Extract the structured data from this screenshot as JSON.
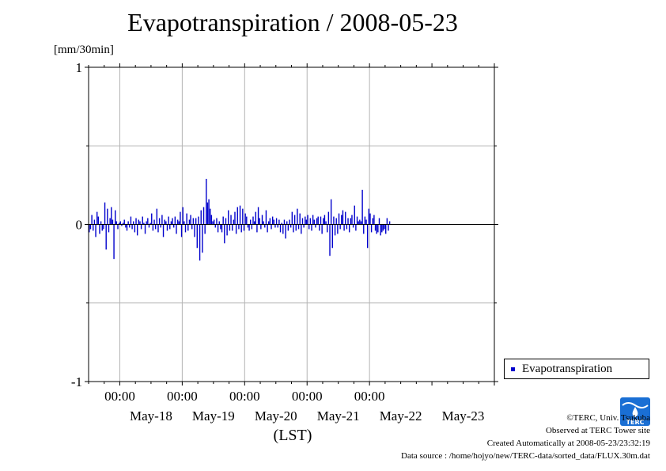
{
  "title": "Evapotranspiration / 2008-05-23",
  "unit_label": "[mm/30min]",
  "x_axis_label": "(LST)",
  "legend": {
    "label": "Evapotranspiration"
  },
  "credits": {
    "copyright": "©TERC, Univ. Tsukuba",
    "observed": "Observed at TERC Tower site",
    "created": "Created Automatically at 2008-05-23/23:32:19",
    "source": "Data source : /home/hojyo/new/TERC-data/sorted_data/FLUX.30m.dat"
  },
  "logo": {
    "text": "TERC"
  },
  "colors": {
    "series": "#0000cc",
    "grid": "#b4b4b4",
    "logo": "#1a6fd4"
  },
  "chart_data": {
    "type": "bar",
    "x_start": "2008-05-17 12:00",
    "interval": "30min",
    "xlim": [
      "2008-05-17 12:00",
      "2008-05-24 00:00"
    ],
    "ylim": [
      -1,
      1
    ],
    "yticks": [
      {
        "value": 1,
        "label": "1"
      },
      {
        "value": 0,
        "label": "0"
      },
      {
        "value": -1,
        "label": "-1"
      }
    ],
    "time_ticks": [
      {
        "t": "2008-05-18 00:00",
        "label": "00:00"
      },
      {
        "t": "2008-05-19 00:00",
        "label": "00:00"
      },
      {
        "t": "2008-05-20 00:00",
        "label": "00:00"
      },
      {
        "t": "2008-05-21 00:00",
        "label": "00:00"
      },
      {
        "t": "2008-05-22 00:00",
        "label": "00:00"
      }
    ],
    "day_labels": [
      {
        "t": "2008-05-18 12:00",
        "label": "May-18"
      },
      {
        "t": "2008-05-19 12:00",
        "label": "May-19"
      },
      {
        "t": "2008-05-20 12:00",
        "label": "May-20"
      },
      {
        "t": "2008-05-21 12:00",
        "label": "May-21"
      },
      {
        "t": "2008-05-22 12:00",
        "label": "May-22"
      },
      {
        "t": "2008-05-23 12:00",
        "label": "May-23"
      }
    ],
    "grid": true,
    "legend_position": "bottom-right, outside plot",
    "series": [
      {
        "name": "Evapotranspiration",
        "values": [
          -0.05,
          -0.03,
          0.06,
          -0.04,
          0.03,
          -0.08,
          0.08,
          0.05,
          -0.06,
          0.02,
          -0.04,
          -0.03,
          0.14,
          -0.16,
          0.1,
          -0.05,
          0.04,
          0.11,
          0.03,
          -0.22,
          0.09,
          0.02,
          -0.03,
          0.01,
          0.02,
          -0.01,
          0.01,
          0.03,
          -0.02,
          -0.04,
          0.02,
          -0.02,
          0.05,
          -0.03,
          0.02,
          -0.05,
          0.04,
          -0.07,
          0.03,
          0.02,
          -0.03,
          0.05,
          0.01,
          -0.06,
          0.02,
          0.04,
          -0.02,
          0.01,
          0.07,
          -0.04,
          0.03,
          -0.03,
          0.1,
          -0.05,
          0.04,
          -0.02,
          0.06,
          -0.08,
          0.03,
          0.02,
          -0.04,
          0.05,
          -0.03,
          0.02,
          0.04,
          -0.02,
          0.05,
          -0.06,
          0.03,
          0.02,
          0.08,
          -0.08,
          0.11,
          0.02,
          -0.05,
          0.07,
          -0.04,
          0.03,
          0.06,
          -0.03,
          0.04,
          -0.08,
          0.04,
          -0.15,
          0.05,
          -0.23,
          0.09,
          -0.18,
          0.11,
          -0.06,
          0.29,
          0.14,
          0.16,
          0.1,
          0.06,
          0.02,
          0.03,
          -0.02,
          0.04,
          -0.05,
          0.02,
          -0.03,
          -0.05,
          0.05,
          -0.12,
          0.04,
          -0.07,
          0.09,
          -0.04,
          0.06,
          -0.04,
          0.03,
          0.08,
          -0.06,
          0.11,
          -0.03,
          0.12,
          -0.05,
          0.1,
          -0.04,
          0.07,
          0.05,
          -0.02,
          -0.04,
          0.03,
          -0.03,
          0.05,
          0.02,
          0.08,
          -0.05,
          0.11,
          0.04,
          -0.03,
          0.06,
          0.02,
          -0.02,
          0.09,
          -0.05,
          0.02,
          0.04,
          -0.03,
          0.05,
          0.03,
          -0.02,
          0.04,
          -0.02,
          0.03,
          -0.05,
          0.01,
          -0.06,
          0.03,
          -0.09,
          0.02,
          -0.04,
          0.03,
          -0.02,
          0.08,
          -0.05,
          0.06,
          -0.04,
          0.1,
          -0.03,
          0.07,
          -0.06,
          0.04,
          -0.02,
          0.05,
          0.03,
          0.06,
          -0.03,
          0.04,
          -0.04,
          0.06,
          0.03,
          -0.02,
          0.04,
          0.05,
          -0.04,
          0.05,
          -0.06,
          0.04,
          0.06,
          0.02,
          -0.05,
          0.08,
          -0.2,
          0.16,
          -0.15,
          0.05,
          -0.07,
          0.04,
          -0.06,
          0.07,
          -0.03,
          0.06,
          0.09,
          -0.04,
          0.08,
          -0.03,
          0.04,
          -0.05,
          0.04,
          0.06,
          -0.02,
          0.12,
          -0.04,
          0.05,
          0.02,
          0.03,
          0.02,
          0.22,
          -0.06,
          0.05,
          0.03,
          -0.15,
          0.1,
          0.07,
          -0.05,
          0.04,
          0.06,
          -0.04,
          -0.06,
          -0.05,
          0.04,
          -0.07,
          -0.05,
          -0.04,
          -0.03,
          -0.06,
          0.04,
          -0.04,
          0.02
        ]
      }
    ]
  }
}
